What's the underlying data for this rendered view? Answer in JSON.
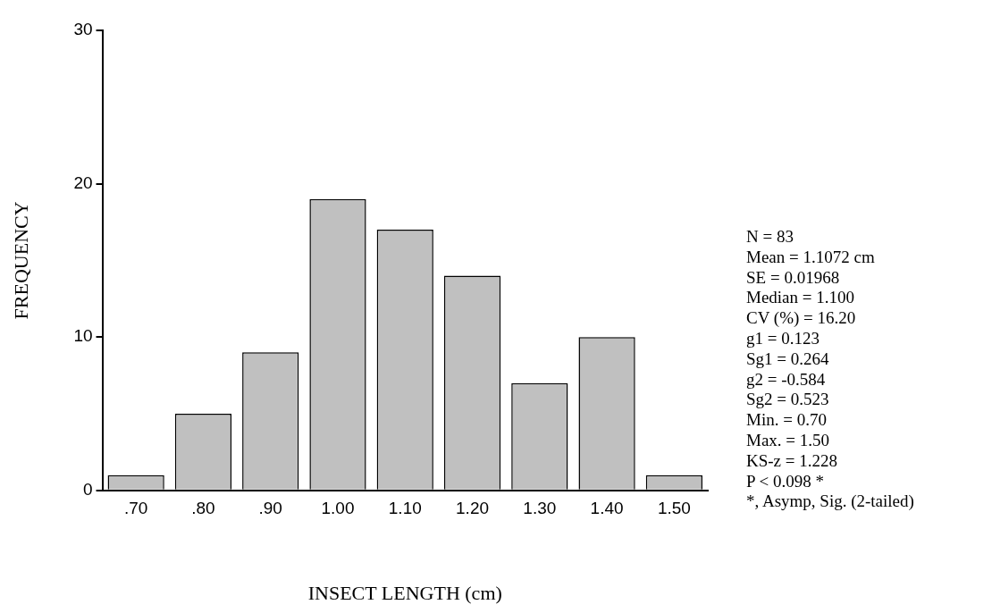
{
  "chart_data": {
    "type": "bar",
    "xlabel": "INSECT LENGTH (cm)",
    "ylabel": "FREQUENCY",
    "categories": [
      ".70",
      ".80",
      ".90",
      "1.00",
      "1.10",
      "1.20",
      "1.30",
      "1.40",
      "1.50"
    ],
    "values": [
      1,
      5,
      9,
      19,
      17,
      14,
      7,
      10,
      1
    ],
    "color": "#c0c0c0",
    "ylim": [
      0,
      30
    ],
    "yticks": [
      0,
      10,
      20,
      30
    ],
    "annotations": [
      "N = 83",
      "Mean = 1.1072 cm",
      "SE = 0.01968",
      "Median = 1.100",
      "CV (%) = 16.20",
      "g1 = 0.123",
      "Sg1 = 0.264",
      "g2 = -0.584",
      "Sg2 = 0.523",
      "Min. = 0.70",
      "Max. = 1.50",
      "KS-z = 1.228",
      "P < 0.098 *",
      "*, Asymp, Sig. (2-tailed)"
    ]
  }
}
